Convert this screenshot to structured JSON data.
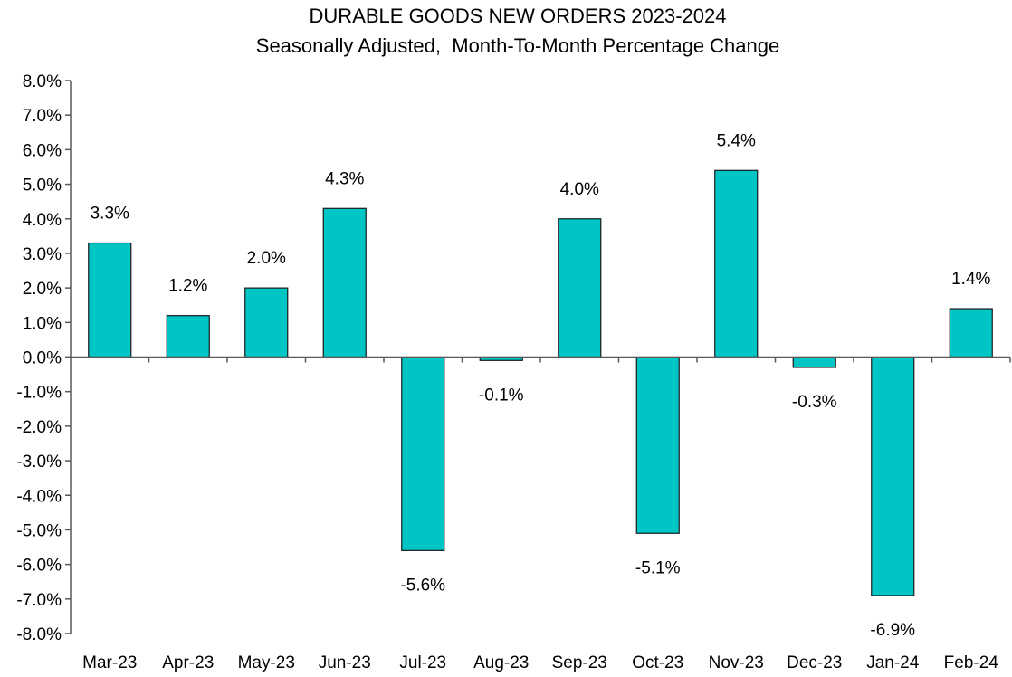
{
  "chart_data": {
    "type": "bar",
    "title": "DURABLE GOODS NEW ORDERS 2023-2024",
    "subtitle": "Seasonally Adjusted,  Month-To-Month Percentage Change",
    "xlabel": "",
    "ylabel": "",
    "categories": [
      "Mar-23",
      "Apr-23",
      "May-23",
      "Jun-23",
      "Jul-23",
      "Aug-23",
      "Sep-23",
      "Oct-23",
      "Nov-23",
      "Dec-23",
      "Jan-24",
      "Feb-24"
    ],
    "values": [
      3.3,
      1.2,
      2.0,
      4.3,
      -5.6,
      -0.1,
      4.0,
      -5.1,
      5.4,
      -0.3,
      -6.9,
      1.4
    ],
    "data_labels": [
      "3.3%",
      "1.2%",
      "2.0%",
      "4.3%",
      "-5.6%",
      "-0.1%",
      "4.0%",
      "-5.1%",
      "5.4%",
      "-0.3%",
      "-6.9%",
      "1.4%"
    ],
    "ylim": [
      -8,
      8
    ],
    "y_ticks": [
      "8.0%",
      "7.0%",
      "6.0%",
      "5.0%",
      "4.0%",
      "3.0%",
      "2.0%",
      "1.0%",
      "0.0%",
      "-1.0%",
      "-2.0%",
      "-3.0%",
      "-4.0%",
      "-5.0%",
      "-6.0%",
      "-7.0%",
      "-8.0%"
    ],
    "grid": false,
    "legend": "none",
    "bar_color": "#00C5C5"
  }
}
